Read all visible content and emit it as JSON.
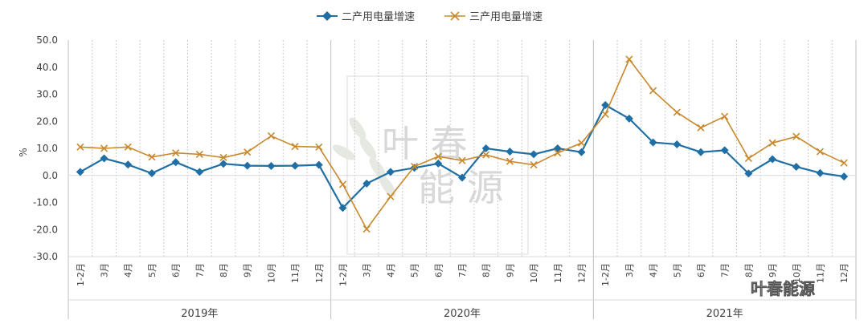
{
  "chart_data": {
    "type": "line",
    "ylabel": "%",
    "ylim": [
      -30,
      50
    ],
    "yticks": [
      "50.0",
      "40.0",
      "30.0",
      "20.0",
      "10.0",
      "0.0",
      "-10.0",
      "-20.0",
      "-30.0"
    ],
    "ytick_values": [
      50,
      40,
      30,
      20,
      10,
      0,
      -10,
      -20,
      -30
    ],
    "categories": [
      "1-2月",
      "3月",
      "4月",
      "5月",
      "6月",
      "7月",
      "8月",
      "9月",
      "10月",
      "11月",
      "12月",
      "1-2月",
      "3月",
      "4月",
      "5月",
      "6月",
      "7月",
      "8月",
      "9月",
      "10月",
      "11月",
      "12月",
      "1-2月",
      "3月",
      "4月",
      "5月",
      "6月",
      "7月",
      "8月",
      "9月",
      "10月",
      "11月",
      "12月"
    ],
    "years": [
      "2019年",
      "2020年",
      "2021年"
    ],
    "legend_position": "top-center",
    "grid": "vertical dotted",
    "series": [
      {
        "name": "二产用电量增速",
        "color": "#1f6fa5",
        "marker": "diamond",
        "values": [
          1.3,
          6.3,
          4.0,
          0.8,
          4.9,
          1.3,
          4.3,
          3.6,
          3.5,
          3.6,
          3.9,
          -12.0,
          -3.0,
          1.3,
          2.8,
          4.4,
          -0.8,
          10.0,
          8.8,
          7.8,
          10.0,
          8.6,
          26.0,
          21.0,
          12.2,
          11.5,
          8.6,
          9.3,
          0.7,
          6.0,
          3.2,
          0.9,
          -0.4
        ]
      },
      {
        "name": "三产用电量增速",
        "color": "#c9882c",
        "marker": "x",
        "values": [
          10.5,
          10.0,
          10.5,
          6.8,
          8.3,
          7.8,
          6.6,
          8.6,
          14.6,
          10.7,
          10.5,
          -3.3,
          -19.8,
          -7.8,
          3.3,
          7.0,
          5.5,
          7.6,
          5.2,
          3.9,
          8.3,
          12.0,
          22.6,
          42.9,
          31.3,
          23.3,
          17.6,
          21.8,
          6.3,
          12.0,
          14.4,
          8.8,
          4.6
        ]
      }
    ]
  },
  "watermark": {
    "line1": "叶 春",
    "line2": "能 源"
  },
  "branding": {
    "label": "叶春能源"
  }
}
